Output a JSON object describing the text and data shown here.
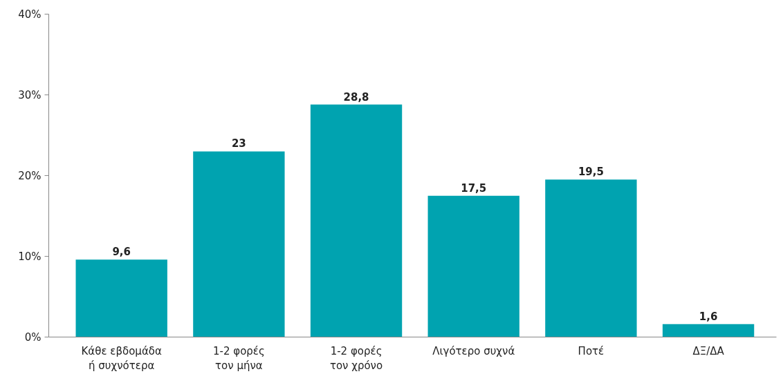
{
  "chart_data": {
    "type": "bar",
    "categories": [
      "Κάθε εβδομάδα\nή συχνότερα",
      "1-2 φορές\nτον μήνα",
      "1-2 φορές\nτον χρόνο",
      "Λιγότερο συχνά",
      "Ποτέ",
      "ΔΞ/ΔΑ"
    ],
    "values": [
      9.6,
      23,
      28.8,
      17.5,
      19.5,
      1.6
    ],
    "value_labels": [
      "9,6",
      "23",
      "28,8",
      "17,5",
      "19,5",
      "1,6"
    ],
    "color": "#00a3b0",
    "ylim": [
      0,
      40
    ],
    "yticks": [
      {
        "value": 0,
        "label": "0%"
      },
      {
        "value": 10,
        "label": "10%"
      },
      {
        "value": 20,
        "label": "20%"
      },
      {
        "value": 30,
        "label": "30%"
      },
      {
        "value": 40,
        "label": "40%"
      }
    ],
    "grid": false
  }
}
